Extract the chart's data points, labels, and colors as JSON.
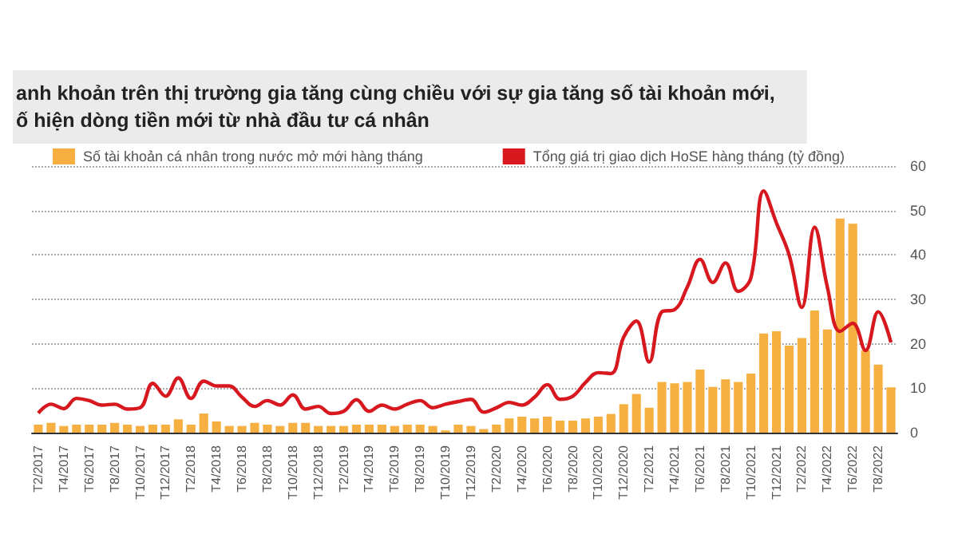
{
  "chart_data": {
    "type": "bar",
    "title": "anh khoản trên thị trường gia tăng cùng chiều với sự gia tăng số tài khoản mới,\nố hiện dòng tiền mới từ nhà đầu tư cá nhân",
    "categories": [
      "T2/2017",
      null,
      "T4/2017",
      null,
      "T6/2017",
      null,
      "T8/2017",
      null,
      "T10/2017",
      null,
      "T12/2017",
      null,
      "T2/2018",
      null,
      "T4/2018",
      null,
      "T6/2018",
      null,
      "T8/2018",
      null,
      "T10/2018",
      null,
      "T12/2018",
      null,
      "T2/2019",
      null,
      "T4/2019",
      null,
      "T6/2019",
      null,
      "T8/2019",
      null,
      "T10/2019",
      null,
      "T12/2019",
      null,
      "T2/2020",
      null,
      "T4/2020",
      null,
      "T6/2020",
      null,
      "T8/2020",
      null,
      "T10/2020",
      null,
      "T12/2020",
      null,
      "T2/2021",
      null,
      "T4/2021",
      null,
      "T6/2021",
      null,
      "T8/2021",
      null,
      "T10/2021",
      null,
      "T12/2021",
      null,
      "T2/2022",
      null,
      "T4/2022",
      null,
      "T6/2022",
      null,
      "T8/2022",
      null
    ],
    "series": [
      {
        "name": "Số tài khoản cá nhân trong nước mở mới hàng tháng",
        "color": "#f6b042",
        "values": [
          1.8,
          2.2,
          1.5,
          1.8,
          1.8,
          1.8,
          2.2,
          1.8,
          1.5,
          1.8,
          1.8,
          3,
          1.8,
          4.3,
          2.5,
          1.5,
          1.5,
          2.2,
          1.8,
          1.5,
          2.2,
          2.2,
          1.5,
          1.5,
          1.5,
          1.8,
          1.8,
          1.8,
          1.5,
          1.8,
          1.8,
          1.5,
          0.5,
          1.8,
          1.5,
          0.8,
          1.8,
          3.2,
          3.6,
          3.2,
          3.6,
          2.7,
          2.7,
          3.2,
          3.6,
          4.2,
          6.4,
          8.7,
          5.6,
          11.4,
          11.1,
          11.4,
          14.2,
          10.3,
          12,
          11.4,
          13.3,
          22.3,
          22.8,
          19.6,
          21.3,
          27.5,
          23.2,
          48.2,
          47,
          18.5,
          15.3,
          10.2
        ]
      },
      {
        "name": "Tổng giá trị giao dịch HoSE hàng tháng (tỷ đồng)",
        "type": "line",
        "color": "#d7191f",
        "values": [
          4.4,
          6.4,
          5.4,
          7.7,
          7.2,
          6.2,
          6.4,
          5.3,
          5.6,
          11.1,
          8.2,
          12.3,
          7.7,
          11.6,
          10.5,
          10.5,
          8,
          5.9,
          7.2,
          6.2,
          8.5,
          5.3,
          5.9,
          4.3,
          4.8,
          7.4,
          4.8,
          6.2,
          5.3,
          6.4,
          7.2,
          5.6,
          6.4,
          7,
          7.5,
          4.6,
          5.6,
          6.8,
          6.2,
          8,
          10.8,
          7.5,
          8.2,
          11.3,
          13.5,
          13.3,
          21.5,
          25.1,
          15.9,
          27.2,
          27.7,
          32.8,
          39,
          33.8,
          38.2,
          31.8,
          34.9,
          54.4,
          47.2,
          40,
          28.2,
          46.2,
          32.8,
          22.8,
          24.6,
          18.5,
          27.2,
          20.3
        ]
      }
    ],
    "ylim": [
      0,
      60
    ],
    "yticks": [
      0,
      10,
      20,
      30,
      40,
      50,
      60
    ],
    "grid": true,
    "legend": "top",
    "marker": "none"
  }
}
